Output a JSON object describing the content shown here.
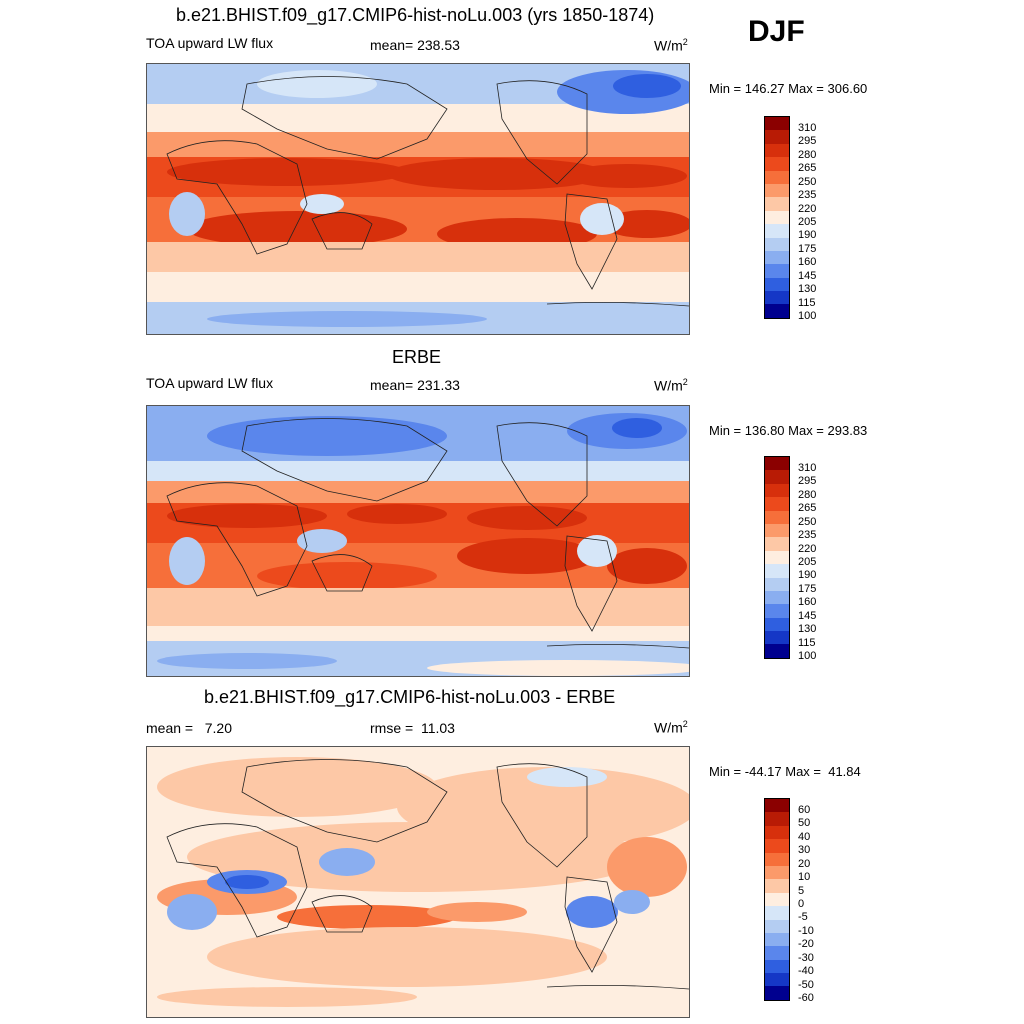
{
  "season": "DJF",
  "panels": [
    {
      "title": "b.e21.BHIST.f09_g17.CMIP6-hist-noLu.003 (yrs 1850-1874)",
      "left_label": "TOA upward LW flux",
      "center_label": "mean= 238.53",
      "units_base": "W/m",
      "units_exp": "2",
      "minmax": "Min = 146.27 Max = 306.60",
      "colorbar": [
        "310",
        "295",
        "280",
        "265",
        "250",
        "235",
        "220",
        "205",
        "190",
        "175",
        "160",
        "145",
        "130",
        "115",
        "100"
      ]
    },
    {
      "title": "ERBE",
      "left_label": "TOA upward LW flux",
      "center_label": "mean= 231.33",
      "units_base": "W/m",
      "units_exp": "2",
      "minmax": "Min = 136.80 Max = 293.83",
      "colorbar": [
        "310",
        "295",
        "280",
        "265",
        "250",
        "235",
        "220",
        "205",
        "190",
        "175",
        "160",
        "145",
        "130",
        "115",
        "100"
      ]
    },
    {
      "title": "b.e21.BHIST.f09_g17.CMIP6-hist-noLu.003 - ERBE",
      "left_label": "mean =   7.20",
      "center_label": "rmse =  11.03",
      "units_base": "W/m",
      "units_exp": "2",
      "minmax": "Min = -44.17 Max =  41.84",
      "colorbar": [
        "60",
        "50",
        "40",
        "30",
        "20",
        "10",
        "5",
        "0",
        "-5",
        "-10",
        "-20",
        "-30",
        "-40",
        "-50",
        "-60"
      ]
    }
  ],
  "colors": {
    "scale": [
      "#8b0000",
      "#b81b05",
      "#d7300c",
      "#ec4a1c",
      "#f66f3a",
      "#fb9a6a",
      "#fdc8a6",
      "#feeee0",
      "#d6e6f8",
      "#b4cdf2",
      "#8aaef0",
      "#5a86ec",
      "#2f5fe0",
      "#1537c6",
      "#00008f"
    ]
  }
}
